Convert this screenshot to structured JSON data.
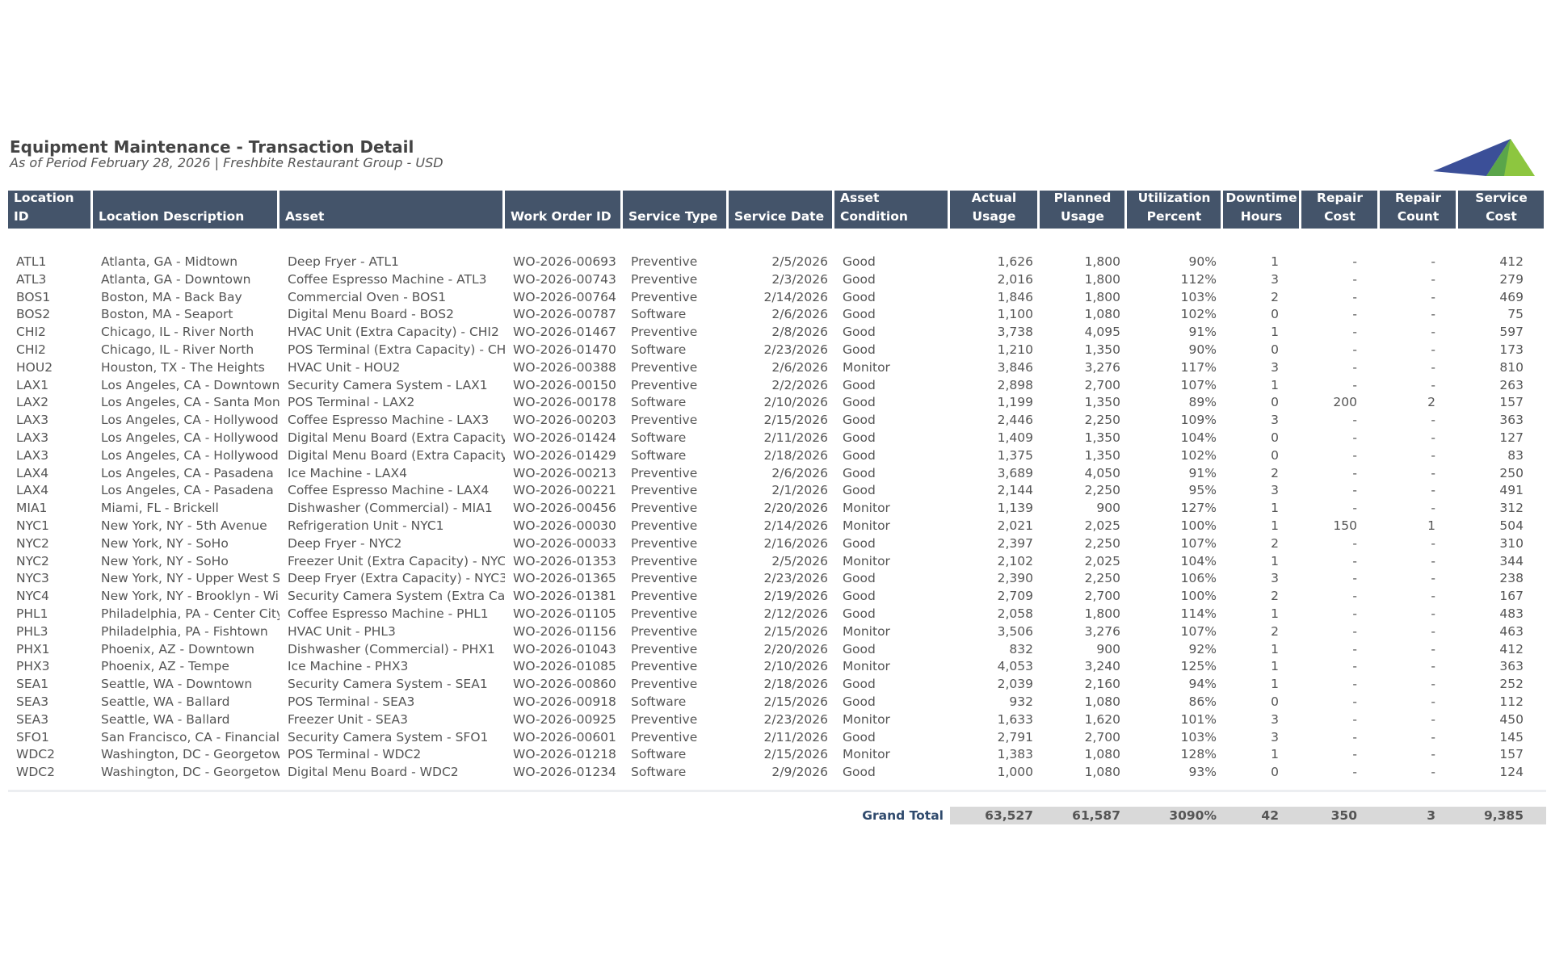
{
  "header": {
    "title": "Equipment Maintenance - Transaction Detail",
    "subtitle": "As of Period February 28, 2026 | Freshbite Restaurant Group - USD"
  },
  "table": {
    "columns": [
      "Location ID",
      "Location Description",
      "Asset",
      "Work Order ID",
      "Service Type",
      "Service Date",
      "Asset Condition",
      "Actual Usage",
      "Planned Usage",
      "Utilization Percent",
      "Downtime Hours",
      "Repair Cost",
      "Repair Count",
      "Service Cost"
    ],
    "rows": [
      [
        "ATL1",
        "Atlanta, GA - Midtown",
        "Deep Fryer - ATL1",
        "WO-2026-00693",
        "Preventive",
        "2/5/2026",
        "Good",
        "1,626",
        "1,800",
        "90%",
        "1",
        "-",
        "-",
        "412"
      ],
      [
        "ATL3",
        "Atlanta, GA - Downtown",
        "Coffee Espresso Machine - ATL3",
        "WO-2026-00743",
        "Preventive",
        "2/3/2026",
        "Good",
        "2,016",
        "1,800",
        "112%",
        "3",
        "-",
        "-",
        "279"
      ],
      [
        "BOS1",
        "Boston, MA - Back Bay",
        "Commercial Oven - BOS1",
        "WO-2026-00764",
        "Preventive",
        "2/14/2026",
        "Good",
        "1,846",
        "1,800",
        "103%",
        "2",
        "-",
        "-",
        "469"
      ],
      [
        "BOS2",
        "Boston, MA - Seaport",
        "Digital Menu Board - BOS2",
        "WO-2026-00787",
        "Software",
        "2/6/2026",
        "Good",
        "1,100",
        "1,080",
        "102%",
        "0",
        "-",
        "-",
        "75"
      ],
      [
        "CHI2",
        "Chicago, IL - River North",
        "HVAC Unit (Extra Capacity) - CHI2",
        "WO-2026-01467",
        "Preventive",
        "2/8/2026",
        "Good",
        "3,738",
        "4,095",
        "91%",
        "1",
        "-",
        "-",
        "597"
      ],
      [
        "CHI2",
        "Chicago, IL - River North",
        "POS Terminal (Extra Capacity) - CHI",
        "WO-2026-01470",
        "Software",
        "2/23/2026",
        "Good",
        "1,210",
        "1,350",
        "90%",
        "0",
        "-",
        "-",
        "173"
      ],
      [
        "HOU2",
        "Houston, TX - The Heights",
        "HVAC Unit - HOU2",
        "WO-2026-00388",
        "Preventive",
        "2/6/2026",
        "Monitor",
        "3,846",
        "3,276",
        "117%",
        "3",
        "-",
        "-",
        "810"
      ],
      [
        "LAX1",
        "Los Angeles, CA - Downtown",
        "Security Camera System - LAX1",
        "WO-2026-00150",
        "Preventive",
        "2/2/2026",
        "Good",
        "2,898",
        "2,700",
        "107%",
        "1",
        "-",
        "-",
        "263"
      ],
      [
        "LAX2",
        "Los Angeles, CA - Santa Moni",
        "POS Terminal - LAX2",
        "WO-2026-00178",
        "Software",
        "2/10/2026",
        "Good",
        "1,199",
        "1,350",
        "89%",
        "0",
        "200",
        "2",
        "157"
      ],
      [
        "LAX3",
        "Los Angeles, CA - Hollywood",
        "Coffee Espresso Machine - LAX3",
        "WO-2026-00203",
        "Preventive",
        "2/15/2026",
        "Good",
        "2,446",
        "2,250",
        "109%",
        "3",
        "-",
        "-",
        "363"
      ],
      [
        "LAX3",
        "Los Angeles, CA - Hollywood",
        "Digital Menu Board (Extra Capacity",
        "WO-2026-01424",
        "Software",
        "2/11/2026",
        "Good",
        "1,409",
        "1,350",
        "104%",
        "0",
        "-",
        "-",
        "127"
      ],
      [
        "LAX3",
        "Los Angeles, CA - Hollywood",
        "Digital Menu Board (Extra Capacity",
        "WO-2026-01429",
        "Software",
        "2/18/2026",
        "Good",
        "1,375",
        "1,350",
        "102%",
        "0",
        "-",
        "-",
        "83"
      ],
      [
        "LAX4",
        "Los Angeles, CA - Pasadena",
        "Ice Machine - LAX4",
        "WO-2026-00213",
        "Preventive",
        "2/6/2026",
        "Good",
        "3,689",
        "4,050",
        "91%",
        "2",
        "-",
        "-",
        "250"
      ],
      [
        "LAX4",
        "Los Angeles, CA - Pasadena",
        "Coffee Espresso Machine - LAX4",
        "WO-2026-00221",
        "Preventive",
        "2/1/2026",
        "Good",
        "2,144",
        "2,250",
        "95%",
        "3",
        "-",
        "-",
        "491"
      ],
      [
        "MIA1",
        "Miami, FL - Brickell",
        "Dishwasher (Commercial) - MIA1",
        "WO-2026-00456",
        "Preventive",
        "2/20/2026",
        "Monitor",
        "1,139",
        "900",
        "127%",
        "1",
        "-",
        "-",
        "312"
      ],
      [
        "NYC1",
        "New York, NY - 5th Avenue",
        "Refrigeration Unit - NYC1",
        "WO-2026-00030",
        "Preventive",
        "2/14/2026",
        "Monitor",
        "2,021",
        "2,025",
        "100%",
        "1",
        "150",
        "1",
        "504"
      ],
      [
        "NYC2",
        "New York, NY - SoHo",
        "Deep Fryer - NYC2",
        "WO-2026-00033",
        "Preventive",
        "2/16/2026",
        "Good",
        "2,397",
        "2,250",
        "107%",
        "2",
        "-",
        "-",
        "310"
      ],
      [
        "NYC2",
        "New York, NY - SoHo",
        "Freezer Unit (Extra Capacity) - NYC",
        "WO-2026-01353",
        "Preventive",
        "2/5/2026",
        "Monitor",
        "2,102",
        "2,025",
        "104%",
        "1",
        "-",
        "-",
        "344"
      ],
      [
        "NYC3",
        "New York, NY - Upper West S",
        "Deep Fryer (Extra Capacity) - NYC3",
        "WO-2026-01365",
        "Preventive",
        "2/23/2026",
        "Good",
        "2,390",
        "2,250",
        "106%",
        "3",
        "-",
        "-",
        "238"
      ],
      [
        "NYC4",
        "New York, NY - Brooklyn - Wi",
        "Security Camera System (Extra Cap",
        "WO-2026-01381",
        "Preventive",
        "2/19/2026",
        "Good",
        "2,709",
        "2,700",
        "100%",
        "2",
        "-",
        "-",
        "167"
      ],
      [
        "PHL1",
        "Philadelphia, PA - Center City",
        "Coffee Espresso Machine - PHL1",
        "WO-2026-01105",
        "Preventive",
        "2/12/2026",
        "Good",
        "2,058",
        "1,800",
        "114%",
        "1",
        "-",
        "-",
        "483"
      ],
      [
        "PHL3",
        "Philadelphia, PA - Fishtown",
        "HVAC Unit - PHL3",
        "WO-2026-01156",
        "Preventive",
        "2/15/2026",
        "Monitor",
        "3,506",
        "3,276",
        "107%",
        "2",
        "-",
        "-",
        "463"
      ],
      [
        "PHX1",
        "Phoenix, AZ - Downtown",
        "Dishwasher (Commercial) - PHX1",
        "WO-2026-01043",
        "Preventive",
        "2/20/2026",
        "Good",
        "832",
        "900",
        "92%",
        "1",
        "-",
        "-",
        "412"
      ],
      [
        "PHX3",
        "Phoenix, AZ - Tempe",
        "Ice Machine - PHX3",
        "WO-2026-01085",
        "Preventive",
        "2/10/2026",
        "Monitor",
        "4,053",
        "3,240",
        "125%",
        "1",
        "-",
        "-",
        "363"
      ],
      [
        "SEA1",
        "Seattle, WA - Downtown",
        "Security Camera System - SEA1",
        "WO-2026-00860",
        "Preventive",
        "2/18/2026",
        "Good",
        "2,039",
        "2,160",
        "94%",
        "1",
        "-",
        "-",
        "252"
      ],
      [
        "SEA3",
        "Seattle, WA - Ballard",
        "POS Terminal - SEA3",
        "WO-2026-00918",
        "Software",
        "2/15/2026",
        "Good",
        "932",
        "1,080",
        "86%",
        "0",
        "-",
        "-",
        "112"
      ],
      [
        "SEA3",
        "Seattle, WA - Ballard",
        "Freezer Unit - SEA3",
        "WO-2026-00925",
        "Preventive",
        "2/23/2026",
        "Monitor",
        "1,633",
        "1,620",
        "101%",
        "3",
        "-",
        "-",
        "450"
      ],
      [
        "SFO1",
        "San Francisco, CA - Financial",
        "Security Camera System - SFO1",
        "WO-2026-00601",
        "Preventive",
        "2/11/2026",
        "Good",
        "2,791",
        "2,700",
        "103%",
        "3",
        "-",
        "-",
        "145"
      ],
      [
        "WDC2",
        "Washington, DC - Georgetow",
        "POS Terminal - WDC2",
        "WO-2026-01218",
        "Software",
        "2/15/2026",
        "Monitor",
        "1,383",
        "1,080",
        "128%",
        "1",
        "-",
        "-",
        "157"
      ],
      [
        "WDC2",
        "Washington, DC - Georgetow",
        "Digital Menu Board - WDC2",
        "WO-2026-01234",
        "Software",
        "2/9/2026",
        "Good",
        "1,000",
        "1,080",
        "93%",
        "0",
        "-",
        "-",
        "124"
      ]
    ],
    "total": {
      "label": "Grand Total",
      "values": [
        "63,527",
        "61,587",
        "3090%",
        "42",
        "350",
        "3",
        "9,385"
      ]
    }
  }
}
